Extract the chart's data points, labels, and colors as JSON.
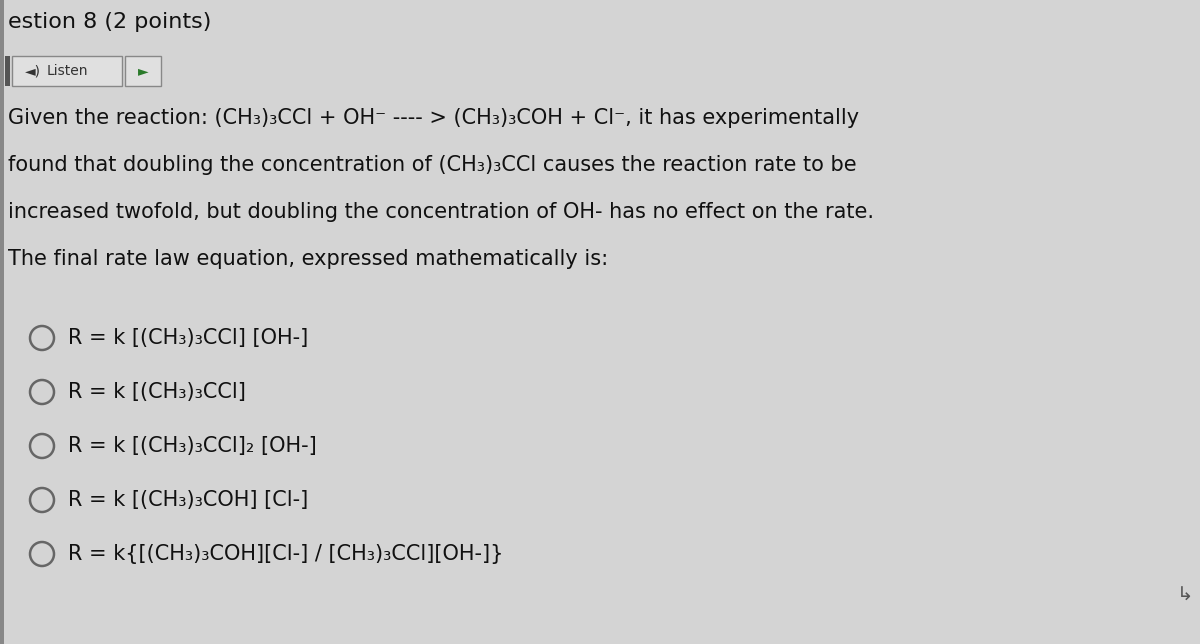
{
  "background_color": "#d4d4d4",
  "title_text": "estion 8 (2 points)",
  "title_fontsize": 16,
  "title_bold": false,
  "listen_button_label": "Listen",
  "paragraph_lines": [
    "Given the reaction: (CH₃)₃CCl + OH⁻ ---- > (CH₃)₃COH + Cl⁻, it has experimentally",
    "found that doubling the concentration of (CH₃)₃CCl causes the reaction rate to be",
    "increased twofold, but doubling the concentration of OH- has no effect on the rate.",
    "The final rate law equation, expressed mathematically is:"
  ],
  "paragraph_fontsize": 15,
  "options": [
    "R = k [(CH₃)₃CCl] [OH-]",
    "R = k [(CH₃)₃CCl]",
    "R = k [(CH₃)₃CCl]₂ [OH-]",
    "R = k [(CH₃)₃COH] [Cl-]",
    "R = k{[(CH₃)₃COH][Cl-] / [CH₃)₃CCl][OH-]}"
  ],
  "options_fontsize": 15,
  "text_color": "#111111",
  "circle_color": "#666666",
  "font_family": "DejaVu Sans"
}
